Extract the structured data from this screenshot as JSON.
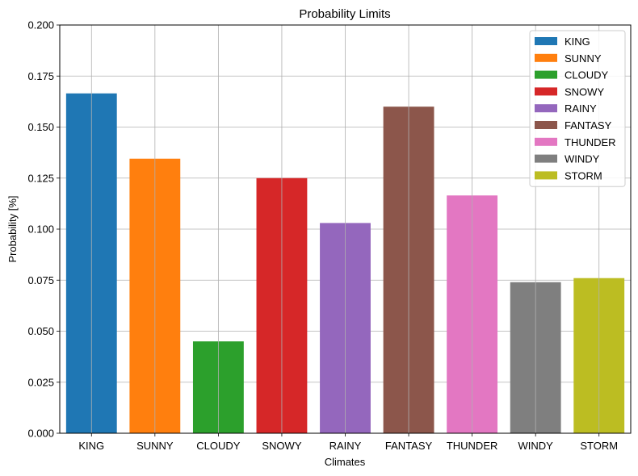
{
  "chart_data": {
    "type": "bar",
    "title": "Probability Limits",
    "xlabel": "Climates",
    "ylabel": "Probability [%]",
    "categories": [
      "KING",
      "SUNNY",
      "CLOUDY",
      "SNOWY",
      "RAINY",
      "FANTASY",
      "THUNDER",
      "WINDY",
      "STORM"
    ],
    "values": [
      0.1665,
      0.1345,
      0.045,
      0.125,
      0.103,
      0.16,
      0.1165,
      0.074,
      0.076
    ],
    "colors": [
      "#1f77b4",
      "#ff7f0e",
      "#2ca02c",
      "#d62728",
      "#9467bd",
      "#8c564b",
      "#e377c2",
      "#7f7f7f",
      "#bcbd22"
    ],
    "ylim": [
      0,
      0.2
    ],
    "yticks": [
      "0.000",
      "0.025",
      "0.050",
      "0.075",
      "0.100",
      "0.125",
      "0.150",
      "0.175",
      "0.200"
    ],
    "grid": true,
    "legend_position": "upper right",
    "legend": [
      "KING",
      "SUNNY",
      "CLOUDY",
      "SNOWY",
      "RAINY",
      "FANTASY",
      "THUNDER",
      "WINDY",
      "STORM"
    ]
  }
}
